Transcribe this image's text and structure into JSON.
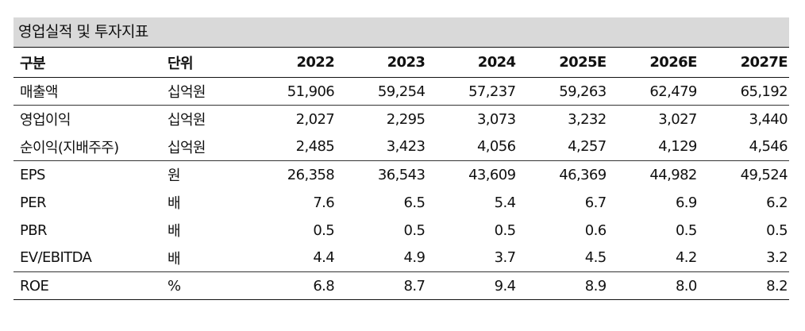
{
  "title": "영업실적 및 투자지표",
  "header": {
    "label": "구분",
    "unit": "단위",
    "years": [
      "2022",
      "2023",
      "2024",
      "2025E",
      "2026E",
      "2027E"
    ]
  },
  "rows": [
    {
      "label": "매출액",
      "unit": "십억원",
      "values": [
        "51,906",
        "59,254",
        "57,237",
        "59,263",
        "62,479",
        "65,192"
      ]
    },
    {
      "label": "영업이익",
      "unit": "십억원",
      "values": [
        "2,027",
        "2,295",
        "3,073",
        "3,232",
        "3,027",
        "3,440"
      ]
    },
    {
      "label": "순이익(지배주주)",
      "unit": "십억원",
      "values": [
        "2,485",
        "3,423",
        "4,056",
        "4,257",
        "4,129",
        "4,546"
      ]
    },
    {
      "label": "EPS",
      "unit": "원",
      "values": [
        "26,358",
        "36,543",
        "43,609",
        "46,369",
        "44,982",
        "49,524"
      ]
    },
    {
      "label": "PER",
      "unit": "배",
      "values": [
        "7.6",
        "6.5",
        "5.4",
        "6.7",
        "6.9",
        "6.2"
      ]
    },
    {
      "label": "PBR",
      "unit": "배",
      "values": [
        "0.5",
        "0.5",
        "0.5",
        "0.6",
        "0.5",
        "0.5"
      ]
    },
    {
      "label": "EV/EBITDA",
      "unit": "배",
      "values": [
        "4.4",
        "4.9",
        "3.7",
        "4.5",
        "4.2",
        "3.2"
      ]
    },
    {
      "label": "ROE",
      "unit": "%",
      "values": [
        "6.8",
        "8.7",
        "9.4",
        "8.9",
        "8.0",
        "8.2"
      ]
    }
  ]
}
